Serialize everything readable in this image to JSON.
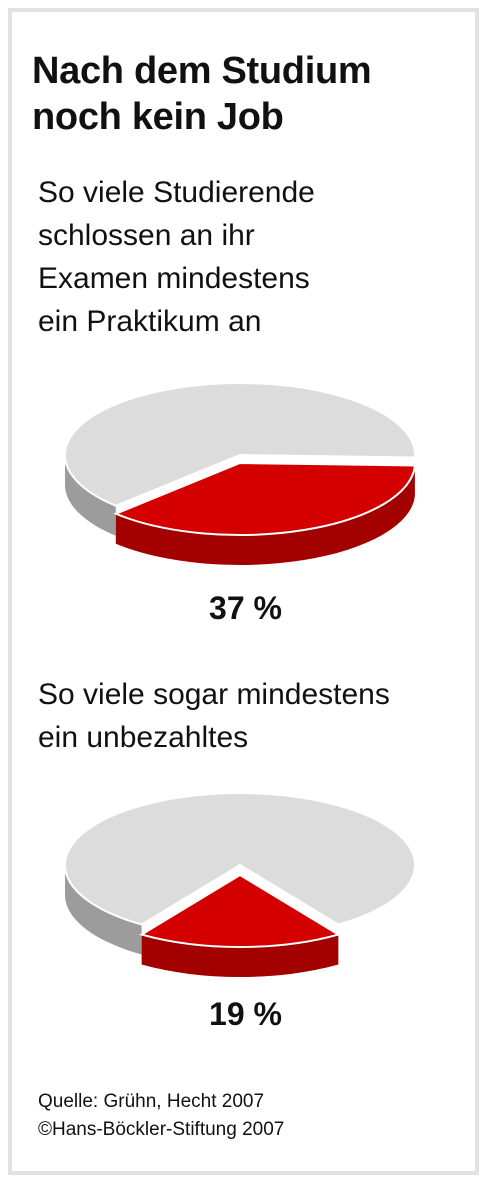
{
  "title": "Nach dem Studium\nnoch kein Job",
  "colors": {
    "highlight": "#d40000",
    "highlight_side": "#a30000",
    "rest": "#dcdcdc",
    "rest_side": "#9c9c9c"
  },
  "charts": [
    {
      "caption": "So viele Studierende\nschlossen an ihr\nExamen mindestens\nein Praktikum an",
      "value_label": "37 %"
    },
    {
      "caption": "So viele sogar mindestens\nein unbezahltes",
      "value_label": "19 %"
    }
  ],
  "chart_data": [
    {
      "type": "pie",
      "title": "",
      "slices": [
        {
          "label": "37 %",
          "value": 37
        },
        {
          "value": 63
        }
      ]
    },
    {
      "type": "pie",
      "title": "",
      "slices": [
        {
          "label": "19 %",
          "value": 19
        },
        {
          "value": 81
        }
      ]
    }
  ],
  "source": "Quelle: Grühn, Hecht 2007",
  "copyright": "©Hans-Böckler-Stiftung 2007"
}
